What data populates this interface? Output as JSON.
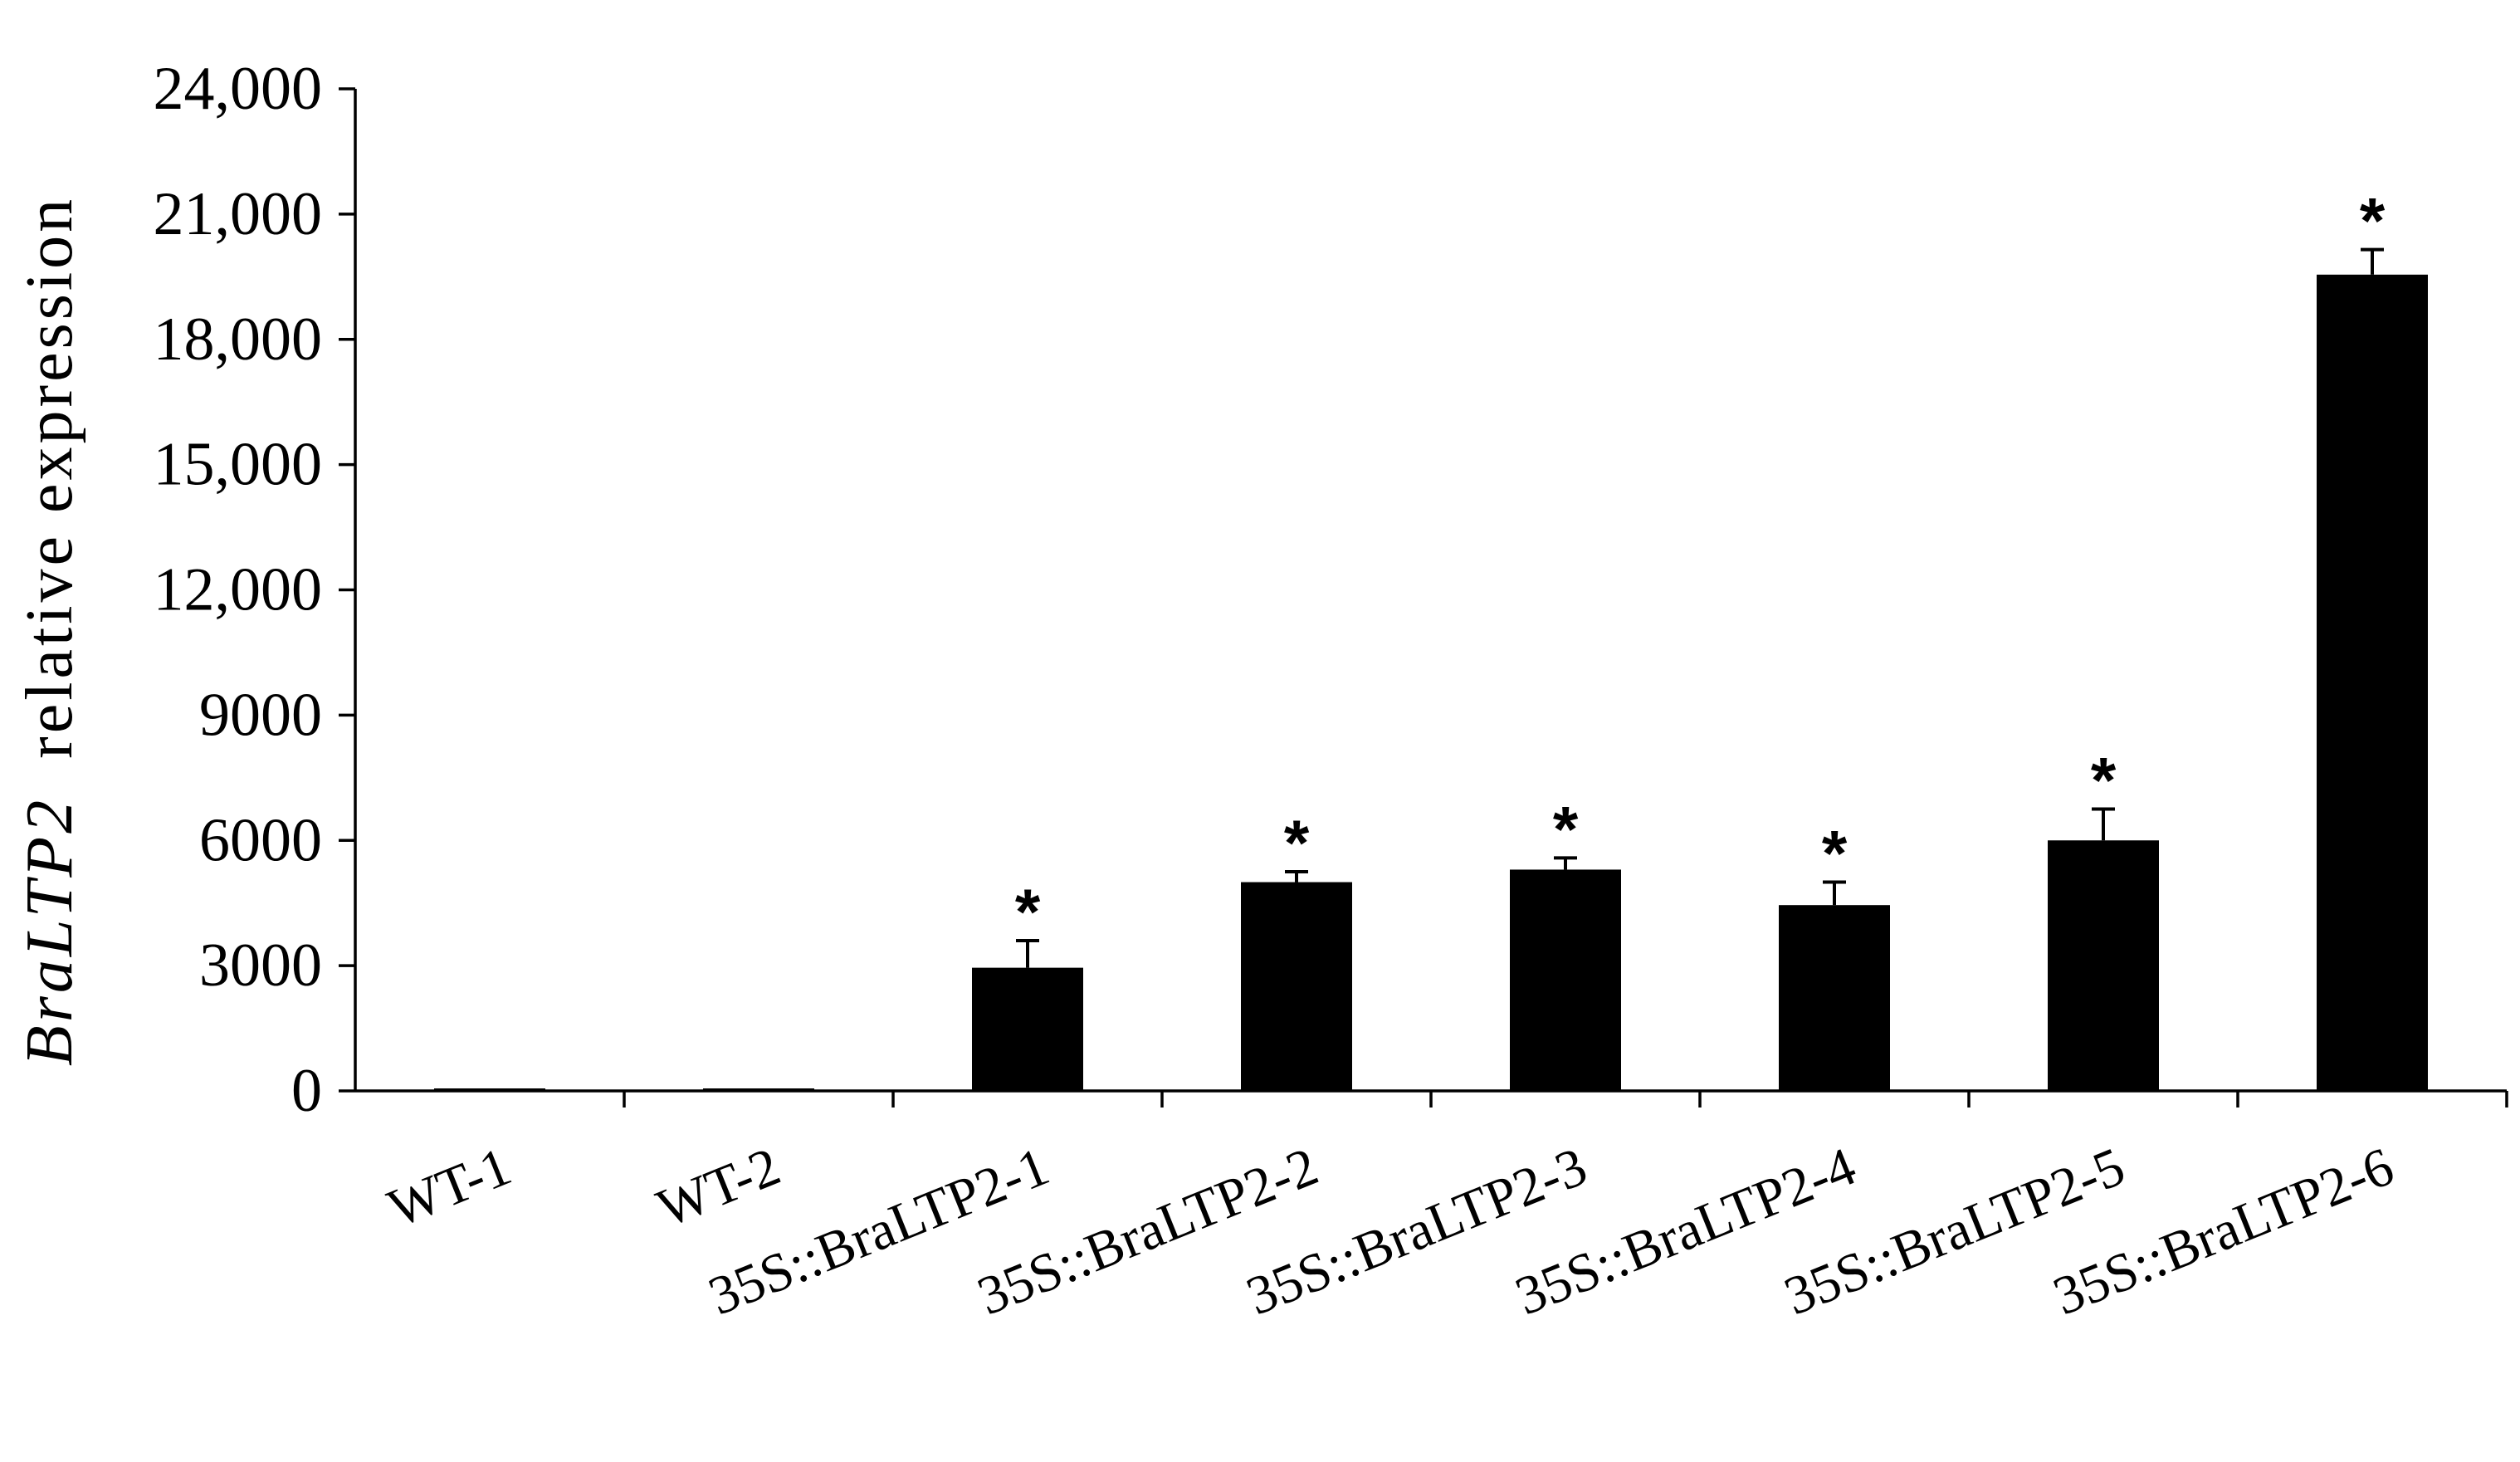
{
  "chart_data": {
    "type": "bar",
    "ylabel": {
      "gene": "BraLTP2",
      "rest": "relative expression"
    },
    "xlabel": "",
    "ylim": [
      0,
      24000
    ],
    "yticks": [
      0,
      3000,
      6000,
      9000,
      12000,
      15000,
      18000,
      21000,
      24000
    ],
    "ytick_labels": [
      "0",
      "3000",
      "6000",
      "9000",
      "12,000",
      "15,000",
      "18,000",
      "21,000",
      "24,000"
    ],
    "categories": [
      "WT-1",
      "WT-2",
      "35S::BraLTP2-1",
      "35S::BraLTP2-2",
      "35S::BraLTP2-3",
      "35S::BraLTP2-4",
      "35S::BraLTP2-5",
      "35S::BraLTP2-6"
    ],
    "values": [
      20,
      20,
      2950,
      5000,
      5300,
      4450,
      6000,
      19550
    ],
    "errors": [
      0,
      0,
      650,
      250,
      280,
      550,
      750,
      600
    ],
    "significance": [
      "",
      "",
      "*",
      "*",
      "*",
      "*",
      "*",
      "*"
    ],
    "bar_color": "#000000",
    "grid": false,
    "legend": "none"
  }
}
